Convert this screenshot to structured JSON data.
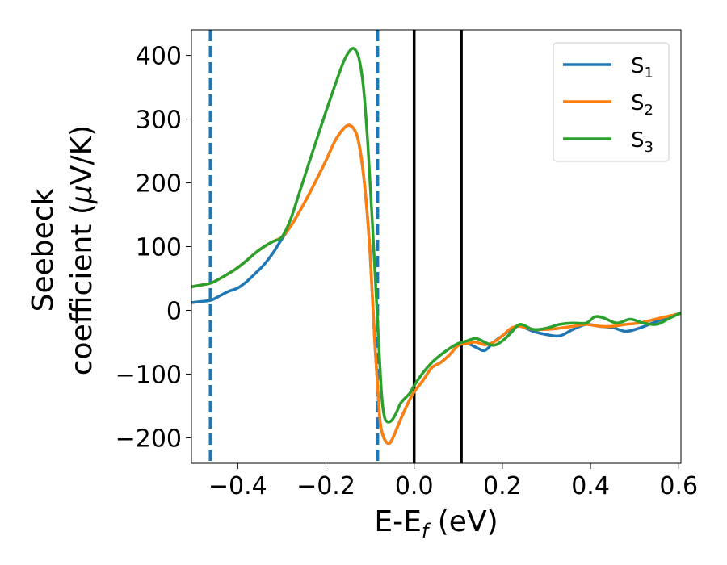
{
  "chart_data": {
    "type": "line",
    "xlabel": "E-E",
    "xlabel_sub": "f",
    "xlabel_unit": " (eV)",
    "ylabel_line1": "Seebeck",
    "ylabel_line2": "coefficient  (",
    "ylabel_mu": "μ",
    "ylabel_unit": "V/K)",
    "xlim": [
      -0.505,
      0.605
    ],
    "ylim": [
      -240,
      440
    ],
    "xticks": [
      -0.4,
      -0.2,
      0.0,
      0.2,
      0.4,
      0.6
    ],
    "xtick_labels": [
      "−0.4",
      "−0.2",
      "0.0",
      "0.2",
      "0.4",
      "0.6"
    ],
    "yticks": [
      -200,
      -100,
      0,
      100,
      200,
      300,
      400
    ],
    "ytick_labels": [
      "−200",
      "−100",
      "0",
      "100",
      "200",
      "300",
      "400"
    ],
    "legend_position": "top-right",
    "vlines": [
      {
        "x": -0.462,
        "style": "dashed",
        "color": "#1f77b4"
      },
      {
        "x": -0.083,
        "style": "dashed",
        "color": "#1f77b4"
      },
      {
        "x": 0.0,
        "style": "solid",
        "color": "#000000"
      },
      {
        "x": 0.107,
        "style": "solid",
        "color": "#000000"
      }
    ],
    "series": [
      {
        "name": "S",
        "name_sub": "1",
        "color": "#1f77b4",
        "x": [
          -0.505,
          -0.48,
          -0.46,
          -0.44,
          -0.42,
          -0.4,
          -0.38,
          -0.36,
          -0.34,
          -0.32,
          -0.3,
          -0.28,
          -0.26,
          -0.24,
          -0.22,
          -0.2,
          -0.18,
          -0.16,
          -0.145,
          -0.13,
          -0.12,
          -0.11,
          -0.1,
          -0.09,
          -0.08,
          -0.075,
          -0.065,
          -0.055,
          -0.045,
          -0.03,
          -0.01,
          0.0,
          0.02,
          0.04,
          0.06,
          0.08,
          0.1,
          0.12,
          0.14,
          0.16,
          0.18,
          0.2,
          0.22,
          0.24,
          0.27,
          0.3,
          0.33,
          0.36,
          0.39,
          0.42,
          0.45,
          0.48,
          0.51,
          0.54,
          0.57,
          0.605
        ],
        "y": [
          12,
          14,
          16,
          23,
          30,
          35,
          45,
          58,
          72,
          90,
          112,
          132,
          155,
          180,
          207,
          235,
          265,
          285,
          290,
          275,
          240,
          180,
          90,
          -40,
          -150,
          -185,
          -205,
          -208,
          -195,
          -170,
          -140,
          -128,
          -110,
          -90,
          -82,
          -70,
          -55,
          -52,
          -58,
          -63,
          -50,
          -40,
          -30,
          -25,
          -33,
          -38,
          -40,
          -30,
          -22,
          -25,
          -27,
          -33,
          -28,
          -20,
          -12,
          -4
        ]
      },
      {
        "name": "S",
        "name_sub": "2",
        "color": "#ff7f0e",
        "x": [
          -0.505,
          -0.48,
          -0.46,
          -0.44,
          -0.42,
          -0.4,
          -0.38,
          -0.36,
          -0.34,
          -0.32,
          -0.3,
          -0.28,
          -0.26,
          -0.24,
          -0.22,
          -0.2,
          -0.18,
          -0.16,
          -0.145,
          -0.13,
          -0.12,
          -0.11,
          -0.1,
          -0.09,
          -0.08,
          -0.075,
          -0.065,
          -0.055,
          -0.045,
          -0.03,
          -0.01,
          0.0,
          0.02,
          0.04,
          0.06,
          0.08,
          0.1,
          0.12,
          0.14,
          0.16,
          0.18,
          0.2,
          0.22,
          0.24,
          0.27,
          0.3,
          0.33,
          0.36,
          0.39,
          0.42,
          0.45,
          0.48,
          0.51,
          0.54,
          0.57,
          0.605
        ],
        "y": [
          37,
          40,
          43,
          50,
          58,
          67,
          78,
          90,
          100,
          108,
          115,
          132,
          155,
          180,
          207,
          235,
          265,
          285,
          290,
          275,
          240,
          180,
          90,
          -40,
          -150,
          -185,
          -205,
          -208,
          -195,
          -170,
          -140,
          -128,
          -110,
          -90,
          -82,
          -70,
          -55,
          -52,
          -50,
          -54,
          -50,
          -40,
          -28,
          -25,
          -30,
          -30,
          -28,
          -25,
          -22,
          -25,
          -25,
          -22,
          -20,
          -15,
          -10,
          -5
        ]
      },
      {
        "name": "S",
        "name_sub": "3",
        "color": "#2ca02c",
        "x": [
          -0.505,
          -0.48,
          -0.46,
          -0.44,
          -0.42,
          -0.4,
          -0.38,
          -0.36,
          -0.34,
          -0.32,
          -0.3,
          -0.28,
          -0.26,
          -0.24,
          -0.22,
          -0.2,
          -0.18,
          -0.16,
          -0.145,
          -0.135,
          -0.125,
          -0.115,
          -0.105,
          -0.095,
          -0.085,
          -0.075,
          -0.068,
          -0.06,
          -0.05,
          -0.04,
          -0.03,
          -0.01,
          0.0,
          0.02,
          0.04,
          0.06,
          0.08,
          0.1,
          0.12,
          0.14,
          0.16,
          0.18,
          0.2,
          0.22,
          0.24,
          0.27,
          0.3,
          0.33,
          0.36,
          0.39,
          0.41,
          0.43,
          0.46,
          0.49,
          0.52,
          0.55,
          0.58,
          0.605
        ],
        "y": [
          37,
          40,
          43,
          50,
          58,
          67,
          78,
          90,
          100,
          108,
          115,
          143,
          185,
          228,
          270,
          312,
          352,
          390,
          408,
          410,
          395,
          350,
          260,
          140,
          10,
          -120,
          -165,
          -175,
          -172,
          -160,
          -145,
          -130,
          -118,
          -98,
          -82,
          -70,
          -60,
          -52,
          -48,
          -44,
          -50,
          -55,
          -48,
          -35,
          -22,
          -30,
          -28,
          -22,
          -20,
          -20,
          -10,
          -12,
          -20,
          -14,
          -20,
          -22,
          -12,
          -4
        ]
      }
    ]
  }
}
